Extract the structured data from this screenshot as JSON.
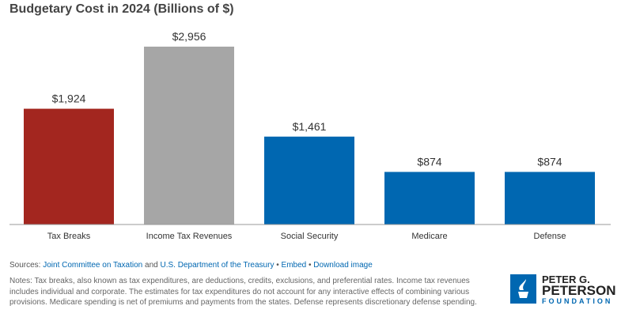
{
  "chart_data": {
    "type": "bar",
    "title": "Budgetary Cost in 2024 (Billions of $)",
    "categories": [
      "Tax Breaks",
      "Income Tax Revenues",
      "Social Security",
      "Medicare",
      "Defense"
    ],
    "values": [
      1924,
      2956,
      1461,
      874,
      874
    ],
    "data_labels": [
      "$1,924",
      "$2,956",
      "$1,461",
      "$874",
      "$874"
    ],
    "colors": [
      "#a3261f",
      "#a6a6a6",
      "#0067b1",
      "#0067b1",
      "#0067b1"
    ],
    "ylim": [
      0,
      2956
    ],
    "grid": false,
    "xlabel": "",
    "ylabel": ""
  },
  "footer": {
    "sources_prefix": "Sources:",
    "source1": "Joint Committee on Taxation",
    "and": "and",
    "source2": "U.S. Department of the Treasury",
    "sep": "•",
    "embed": "Embed",
    "download": "Download image",
    "notes": "Notes: Tax breaks, also known as tax expenditures, are deductions, credits, exclusions, and preferential rates. Income tax revenues includes individual and corporate. The estimates for tax expenditures do not account for any interactive effects of combining various provisions. Medicare spending is net of premiums and payments from the states. Defense represents discretionary defense spending."
  },
  "logo": {
    "line1": "PETER G.",
    "line2": "PETERSON",
    "line3": "FOUNDATION"
  }
}
